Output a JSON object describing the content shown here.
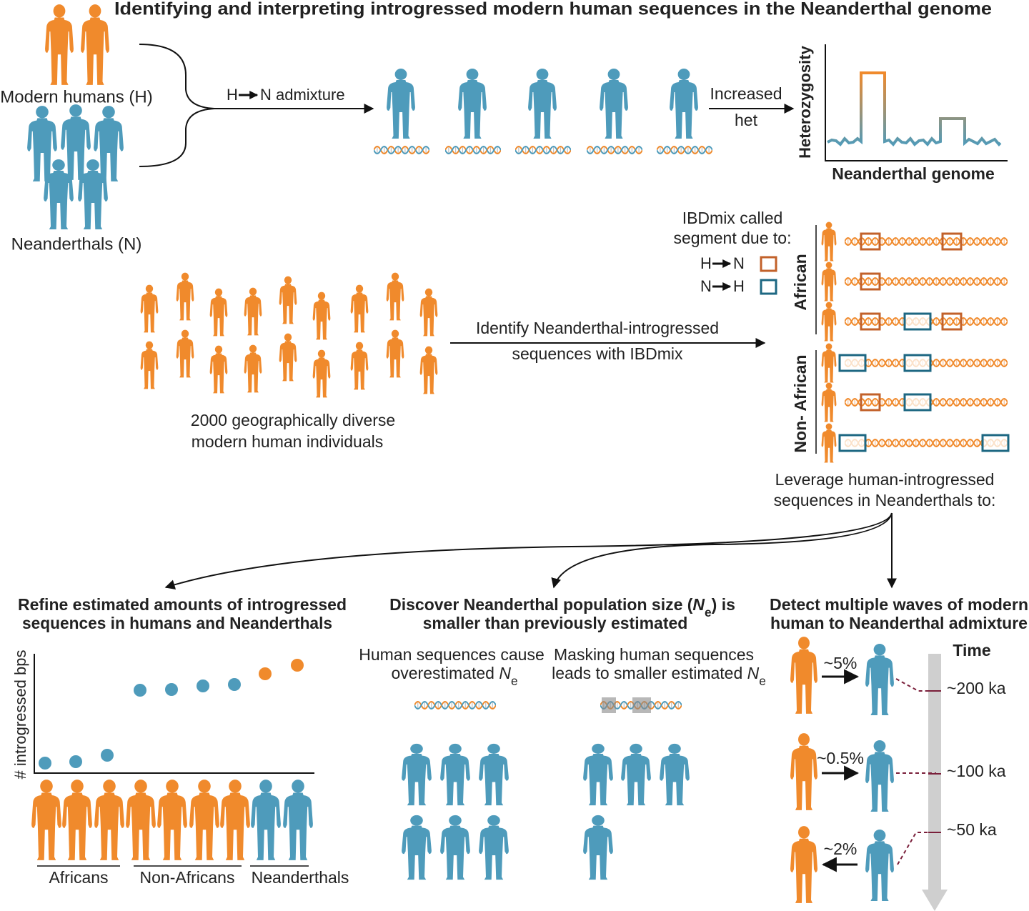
{
  "title": "Identifying and interpreting introgressed modern human sequences in the Neanderthal genome",
  "top": {
    "modern_humans": "Modern humans (H)",
    "neanderthals": "Neanderthals (N)",
    "admixture": {
      "from": "H",
      "label": "N admixture"
    },
    "increased_het": [
      "Increased",
      "het"
    ],
    "y_axis": "Heterozygosity",
    "x_axis": "Neanderthal genome"
  },
  "middle": {
    "individuals": [
      "2000 geographically diverse",
      "modern human individuals"
    ],
    "identify": [
      "Identify Neanderthal-introgressed",
      "sequences with IBDmix"
    ],
    "legend": {
      "title": [
        "IBDmix called",
        "segment due to:"
      ],
      "items": [
        {
          "from": "H",
          "to": "N"
        },
        {
          "from": "N",
          "to": "H"
        }
      ]
    },
    "groups": [
      "African",
      "Non- African"
    ],
    "leverage": [
      "Leverage human-introgressed",
      "sequences in Neanderthals to:"
    ]
  },
  "refine": {
    "title": [
      "Refine estimated amounts of introgressed",
      "sequences in humans and Neanderthals"
    ],
    "y_axis": "# introgressed bps",
    "groups": [
      "Africans",
      "Non-Africans",
      "Neanderthals"
    ]
  },
  "discover": {
    "title": {
      "before": "Discover Neanderthal population size (",
      "var": "N",
      "sub": "e",
      "after": ") is",
      "line2": "smaller than previously estimated"
    },
    "left_caption": {
      "line1": "Human sequences cause",
      "before": "overestimated ",
      "var": "N",
      "sub": "e"
    },
    "right_caption": {
      "line1": "Masking human sequences",
      "before": "leads to smaller estimated ",
      "var": "N",
      "sub": "e"
    }
  },
  "detect": {
    "title": [
      "Detect multiple waves of modern",
      "human to Neanderthal admixture"
    ],
    "time": "Time",
    "waves": [
      {
        "percent": "~5%",
        "age": "~200 ka"
      },
      {
        "percent": "~0.5%",
        "age": "~100 ka"
      },
      {
        "percent": "~2%",
        "age": "~50 ka"
      }
    ]
  }
}
